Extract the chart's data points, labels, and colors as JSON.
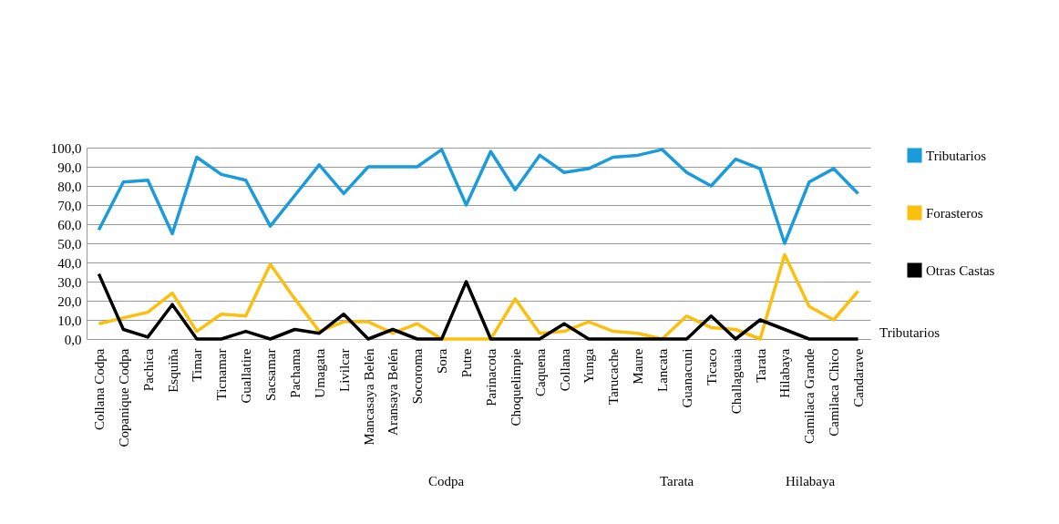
{
  "chart_data": {
    "type": "line",
    "categories": [
      "Collana Codpa",
      "Copanique Codpa",
      "Pachica",
      "Esquiña",
      "Timar",
      "Ticnamar",
      "Guallatire",
      "Sacsamar",
      "Pachama",
      "Umagata",
      "Livilcar",
      "Mancasaya Belén",
      "Aransaya Belén",
      "Socoroma",
      "Sora",
      "Putre",
      "Parinacota",
      "Choquelimpie",
      "Caquena",
      "Collana",
      "Yunga",
      "Tarucache",
      "Maure",
      "Lancata",
      "Guanacuni",
      "Ticaco",
      "Challaguaia",
      "Tarata",
      "Hilabaya",
      "Camilaca Grande",
      "Camilaca Chico",
      "Candarave"
    ],
    "series": [
      {
        "name": "Tributarios",
        "color": "#1a9bdc",
        "values": [
          57,
          82,
          83,
          55,
          95,
          86,
          83,
          59,
          75,
          91,
          76,
          90,
          90,
          90,
          99,
          70,
          98,
          78,
          96,
          87,
          89,
          95,
          96,
          99,
          87,
          80,
          94,
          89,
          50,
          82,
          89,
          76
        ]
      },
      {
        "name": "Forasteros",
        "color": "#fbbf0e",
        "values": [
          8,
          11,
          14,
          24,
          4,
          13,
          12,
          39,
          21,
          4,
          9,
          9,
          3,
          8,
          0,
          0,
          0,
          21,
          3,
          4,
          9,
          4,
          3,
          0,
          12,
          6,
          5,
          0,
          44,
          17,
          10,
          25
        ]
      },
      {
        "name": "Otras Castas",
        "color": "#000000",
        "values": [
          34,
          5,
          1,
          18,
          0,
          0,
          4,
          0,
          5,
          3,
          13,
          0,
          5,
          0,
          0,
          30,
          0,
          0,
          0,
          8,
          0,
          0,
          0,
          0,
          0,
          12,
          0,
          10,
          5,
          0,
          0,
          0
        ]
      }
    ],
    "ylim": [
      0,
      100
    ],
    "yticks": [
      {
        "value": 0,
        "label": "0,0"
      },
      {
        "value": 10,
        "label": "10,0"
      },
      {
        "value": 20,
        "label": "20,0"
      },
      {
        "value": 30,
        "label": "30,0"
      },
      {
        "value": 40,
        "label": "40,0"
      },
      {
        "value": 50,
        "label": "50,0"
      },
      {
        "value": 60,
        "label": "60,0"
      },
      {
        "value": 70,
        "label": "70,0"
      },
      {
        "value": 80,
        "label": "80,0"
      },
      {
        "value": 90,
        "label": "90,0"
      },
      {
        "value": 100,
        "label": "100,0"
      }
    ],
    "annotations": [
      "Codpa",
      "Tarata",
      "Hilabaya",
      "Tributarios"
    ],
    "grid": "y",
    "legend": "right",
    "marker": "none",
    "line_style": "solid"
  }
}
